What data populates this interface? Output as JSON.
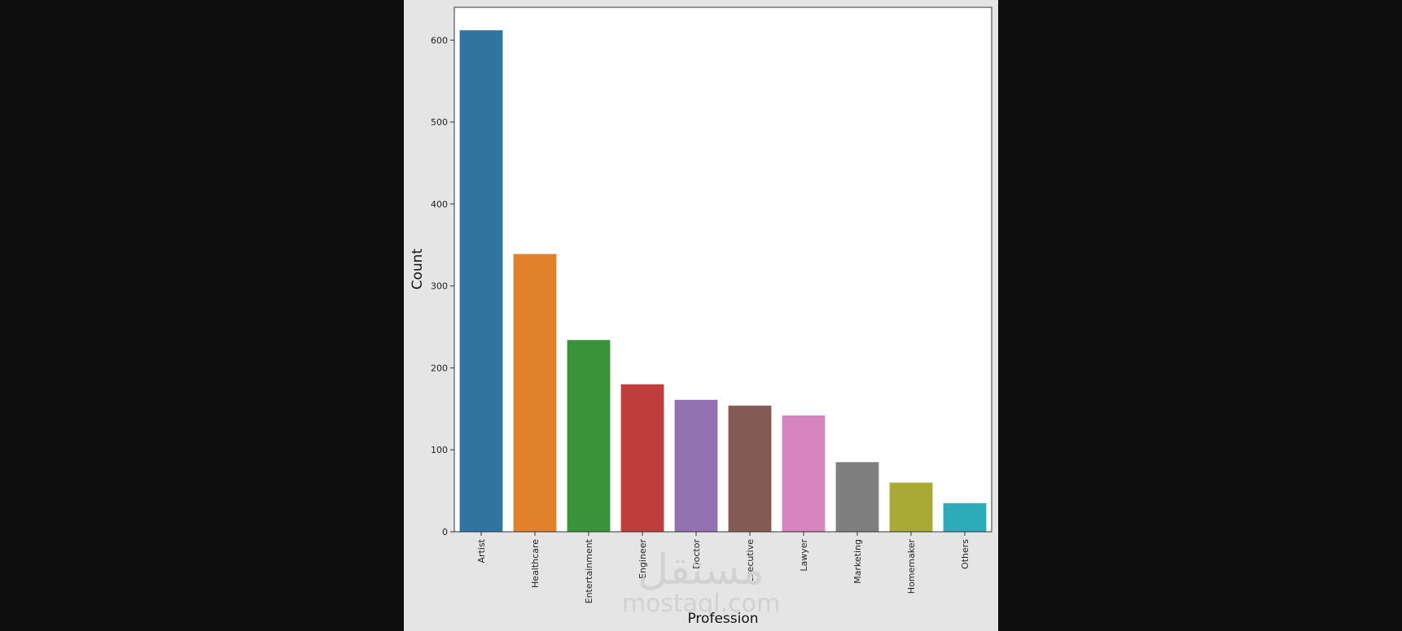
{
  "chart_data": {
    "type": "bar",
    "categories": [
      "Artist",
      "Healthcare",
      "Entertainment",
      "Engineer",
      "Doctor",
      "Executive",
      "Lawyer",
      "Marketing",
      "Homemaker",
      "Others"
    ],
    "values": [
      612,
      339,
      234,
      180,
      161,
      154,
      142,
      85,
      60,
      35
    ],
    "colors": [
      "#3274a1",
      "#e1812c",
      "#3a923a",
      "#c03d3e",
      "#9372b2",
      "#845b53",
      "#d684bd",
      "#7f7f7f",
      "#a9aa35",
      "#2eabb8"
    ],
    "xlabel": "Profession",
    "ylabel": "Count",
    "ylim": [
      0,
      640
    ],
    "yticks": [
      0,
      100,
      200,
      300,
      400,
      500,
      600
    ],
    "grid": false
  },
  "watermark": {
    "arabic": "مستقل",
    "latin": "mostaql.com"
  }
}
